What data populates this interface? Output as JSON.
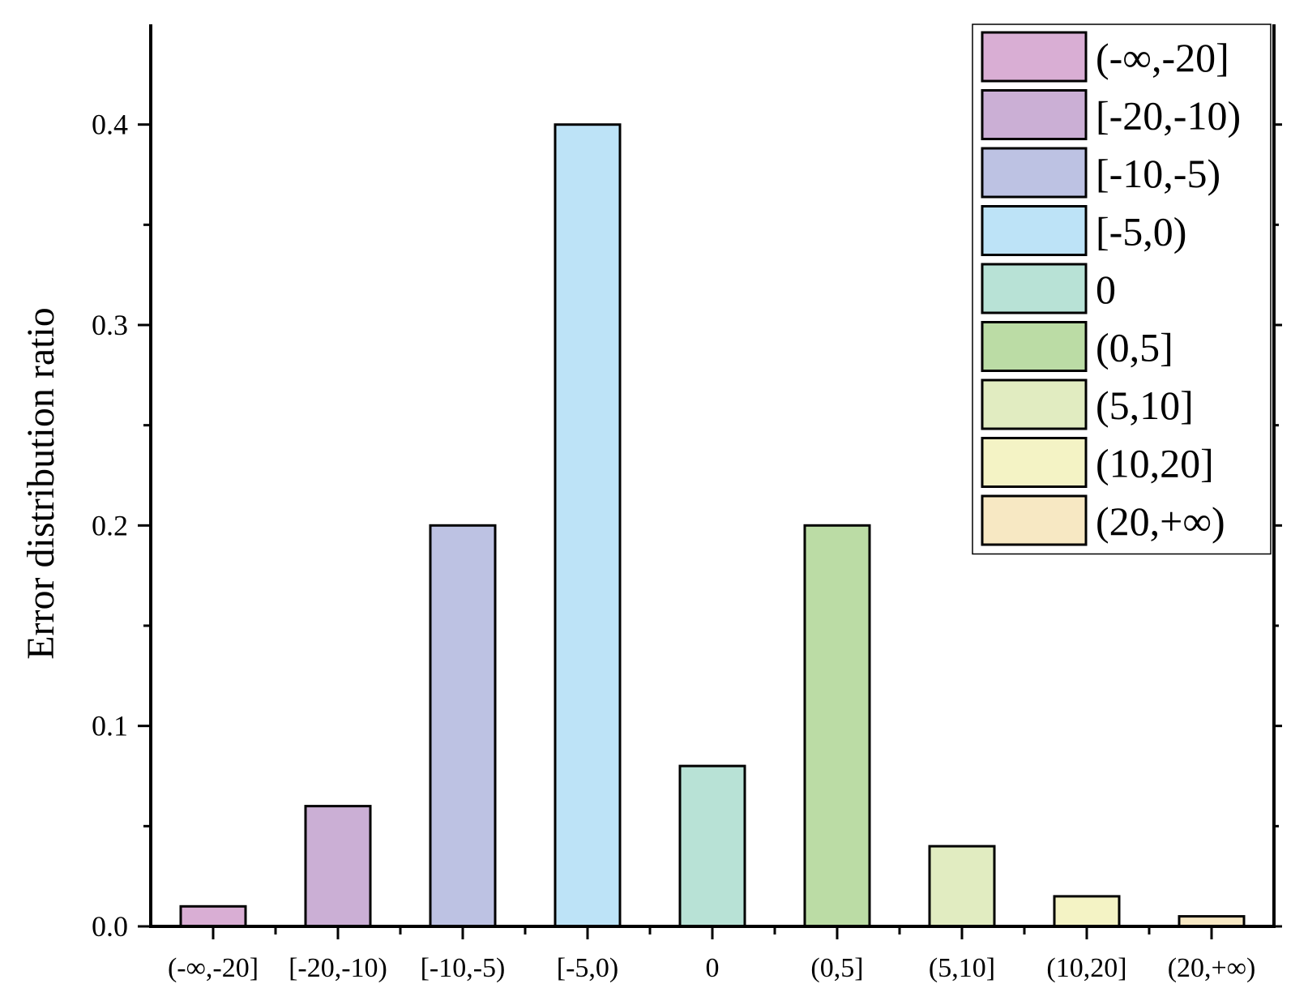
{
  "chart_data": {
    "type": "bar",
    "ylabel": "Error distribution ratio",
    "xlabel": "",
    "ylim": [
      0,
      0.45
    ],
    "yticks": [
      0.0,
      0.1,
      0.2,
      0.3,
      0.4
    ],
    "ytick_labels": [
      "0.0",
      "0.1",
      "0.2",
      "0.3",
      "0.4"
    ],
    "categories": [
      "(-∞,-20]",
      "[-20,-10)",
      "[-10,-5)",
      "[-5,0)",
      "0",
      "(0,5]",
      "(5,10]",
      "(10,20]",
      "(20,+∞)"
    ],
    "values": [
      0.01,
      0.06,
      0.2,
      0.4,
      0.08,
      0.2,
      0.04,
      0.015,
      0.005
    ],
    "colors": [
      "#d9aed4",
      "#cbafd5",
      "#bdc2e3",
      "#bde3f7",
      "#b8e2d6",
      "#bbdca5",
      "#e1ecc1",
      "#f4f3c5",
      "#f7e8c3"
    ],
    "legend_position": "top-right",
    "grid": false
  }
}
